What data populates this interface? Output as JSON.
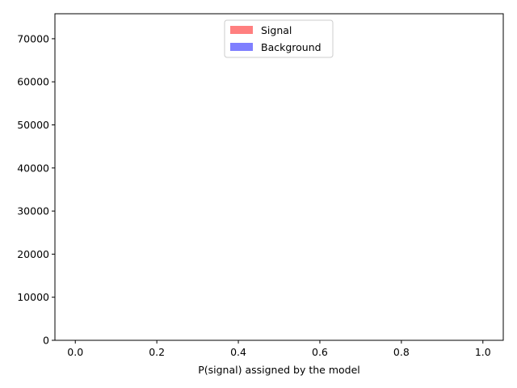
{
  "chart_data": {
    "type": "histogram",
    "title": "",
    "xlabel": "P(signal) assigned by the model",
    "ylabel": "",
    "xlim": [
      -0.05,
      1.05
    ],
    "ylim": [
      0,
      75800
    ],
    "bins": 100,
    "bin_range": [
      0,
      1
    ],
    "x_ticks": [
      0.0,
      0.2,
      0.4,
      0.6,
      0.8,
      1.0
    ],
    "x_tick_labels": [
      "0.0",
      "0.2",
      "0.4",
      "0.6",
      "0.8",
      "1.0"
    ],
    "y_ticks": [
      0,
      10000,
      20000,
      30000,
      40000,
      50000,
      60000,
      70000
    ],
    "y_tick_labels": [
      "0",
      "10000",
      "20000",
      "30000",
      "40000",
      "50000",
      "60000",
      "70000"
    ],
    "grid": false,
    "legend_position": "upper center",
    "series": [
      {
        "name": "Signal",
        "color": "#ff0000",
        "alpha": 0.5,
        "values": [
          0,
          0,
          0,
          0,
          0,
          0,
          0,
          0,
          0,
          0,
          0,
          0,
          0,
          0,
          0,
          0,
          0,
          0,
          0,
          0,
          0,
          0,
          0,
          0,
          0,
          0,
          0,
          0,
          0,
          0,
          0,
          0,
          0,
          0,
          0,
          0,
          0,
          0,
          0,
          0,
          0,
          0,
          0,
          0,
          0,
          0,
          0,
          0,
          0,
          0,
          0,
          0,
          0,
          0,
          0,
          0,
          0,
          0,
          0,
          0,
          0,
          0,
          0,
          0,
          0,
          0,
          0,
          0,
          0,
          0,
          0,
          0,
          0,
          0,
          0,
          0,
          0,
          0,
          0,
          0,
          0,
          0,
          0,
          0,
          0,
          0,
          0,
          0,
          0,
          0,
          0,
          0,
          0,
          0,
          0,
          0,
          0,
          0,
          0,
          0
        ]
      },
      {
        "name": "Background",
        "color": "#0000ff",
        "alpha": 0.5,
        "values": [
          0,
          0,
          0,
          0,
          0,
          0,
          0,
          0,
          0,
          0,
          0,
          0,
          0,
          0,
          0,
          0,
          0,
          0,
          0,
          0,
          0,
          0,
          0,
          0,
          0,
          0,
          0,
          0,
          0,
          0,
          0,
          0,
          0,
          0,
          0,
          0,
          0,
          0,
          0,
          0,
          0,
          0,
          0,
          0,
          0,
          0,
          0,
          0,
          0,
          0,
          0,
          0,
          0,
          0,
          0,
          0,
          0,
          0,
          0,
          0,
          0,
          0,
          0,
          0,
          0,
          0,
          0,
          0,
          0,
          0,
          0,
          0,
          0,
          0,
          0,
          0,
          0,
          0,
          0,
          0,
          0,
          0,
          0,
          0,
          0,
          0,
          0,
          0,
          0,
          0,
          0,
          0,
          0,
          0,
          0,
          0,
          0,
          0,
          0,
          0
        ]
      }
    ]
  }
}
